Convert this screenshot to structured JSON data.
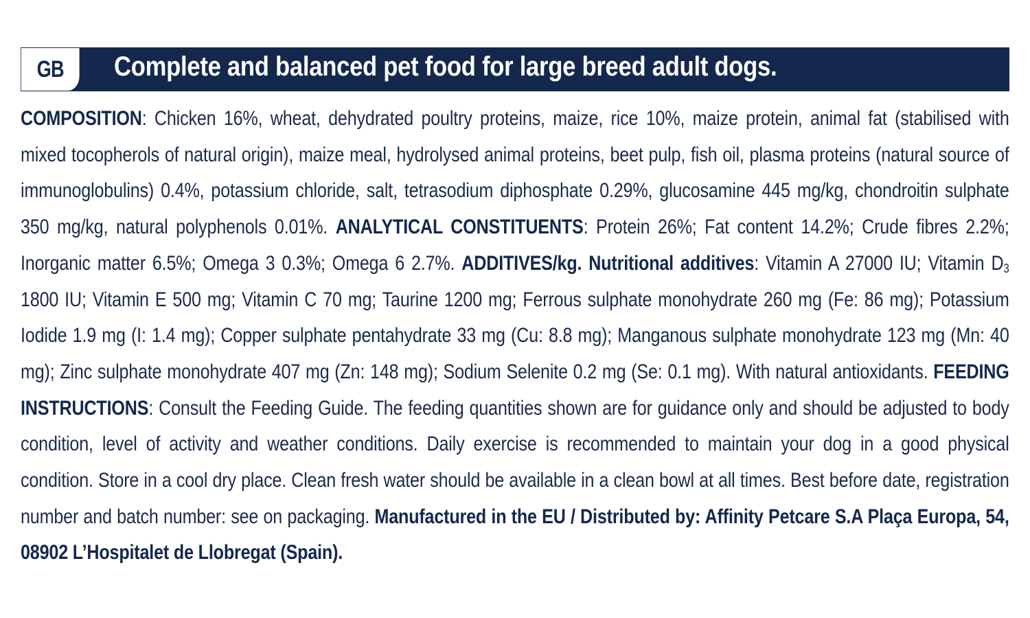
{
  "header": {
    "country_code": "GB",
    "title": "Complete and balanced pet food for large breed adult dogs."
  },
  "composition": {
    "heading": "COMPOSITION",
    "text": ": Chicken 16%, wheat, dehydrated poultry proteins, maize, rice 10%, maize protein, animal fat (stabilised with mixed tocopherols of natural origin), maize meal, hydrolysed animal proteins, beet pulp, fish oil, plasma proteins (natural source of immunoglobulins) 0.4%, potassium chloride, salt, tetrasodium diphosphate 0.29%, glucosamine 445 mg/kg, chondroitin sulphate 350 mg/kg, natural polyphenols 0.01%. "
  },
  "analytical": {
    "heading": "ANALYTICAL CONSTITUENTS",
    "text": ": Protein 26%; Fat content 14.2%; Crude fibres 2.2%; Inorganic matter 6.5%; Omega 3 0.3%; Omega 6 2.7%. "
  },
  "additives": {
    "heading": "ADDITIVES/kg. Nutritional additives",
    "text_before_sub": ": Vitamin A 27000 IU; Vitamin D",
    "subscript": "3",
    "text_after_sub": " 1800 IU; Vitamin E 500 mg; Vitamin C 70 mg; Taurine 1200 mg; Ferrous sulphate monohydrate 260 mg (Fe: 86 mg); Potassium Iodide 1.9 mg (I: 1.4 mg); Copper sulphate pentahydrate 33 mg (Cu: 8.8 mg); Manganous sulphate monohydrate 123 mg (Mn: 40 mg); Zinc sulphate monohydrate 407 mg (Zn: 148 mg); Sodium Selenite 0.2 mg (Se: 0.1 mg). With natural antioxidants. "
  },
  "feeding": {
    "heading": "FEEDING INSTRUCTIONS",
    "text": ": Consult the Feeding Guide. The feeding quantities shown are for guidance only and should be adjusted to body condition, level of activity and weather conditions. Daily exercise is recommended to maintain your dog in a good physical condition. Store in a cool dry place. Clean fresh water should be available in a clean bowl at all times. Best before date, registration number and batch number: see on packaging. "
  },
  "manufacturer": {
    "text": "Manufactured in the EU / Distributed by: Affinity Petcare S.A Plaça Europa, 54, 08902 L’Hospitalet de Llobregat (Spain)."
  },
  "colors": {
    "navy": "#14284d",
    "text": "#1b2a49",
    "background": "#ffffff"
  }
}
